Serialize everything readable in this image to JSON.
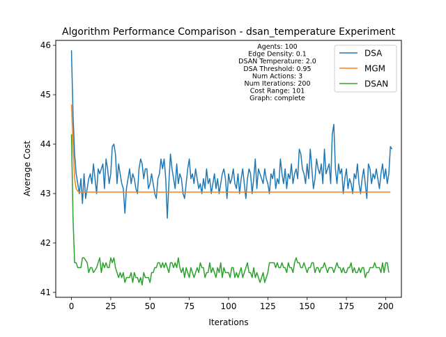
{
  "chart_data": {
    "type": "line",
    "title": "Algorithm Performance Comparison - dsan_temperature Experiment",
    "xlabel": "Iterations",
    "ylabel": "Average Cost",
    "xlim": [
      -10,
      210
    ],
    "ylim": [
      40.9,
      46.1
    ],
    "xticks": [
      0,
      25,
      50,
      75,
      100,
      125,
      150,
      175,
      200
    ],
    "yticks": [
      41,
      42,
      43,
      44,
      45,
      46
    ],
    "grid": false,
    "legend_position": "top-right",
    "annotation": [
      "Agents: 100",
      "Edge Density: 0.1",
      "DSAN Temperature: 2.0",
      "DSA Threshold: 0.95",
      "Num Actions: 3",
      "Num Iterations: 200",
      "Cost Range: 101",
      "Graph: complete"
    ],
    "series": [
      {
        "name": "DSA",
        "color": "#1f77b4",
        "y": [
          45.9,
          44.6,
          43.8,
          43.4,
          43.2,
          43.0,
          43.3,
          42.8,
          43.4,
          42.9,
          43.1,
          43.3,
          43.4,
          43.2,
          43.6,
          43.3,
          43.0,
          43.5,
          43.4,
          43.5,
          43.6,
          43.1,
          43.7,
          43.5,
          43.2,
          43.4,
          43.95,
          44.0,
          43.8,
          43.2,
          43.6,
          43.4,
          43.2,
          43.1,
          42.6,
          43.1,
          43.3,
          43.5,
          43.2,
          43.4,
          43.3,
          43.1,
          43.0,
          43.5,
          43.7,
          43.6,
          43.3,
          43.5,
          43.5,
          43.1,
          43.2,
          43.4,
          43.2,
          43.0,
          42.9,
          43.3,
          43.4,
          43.7,
          43.5,
          43.7,
          43.3,
          42.5,
          43.2,
          43.8,
          43.5,
          43.3,
          43.1,
          43.6,
          43.2,
          43.4,
          43.3,
          43.0,
          42.9,
          43.2,
          43.5,
          43.7,
          43.3,
          43.4,
          43.2,
          43.5,
          43.3,
          43.1,
          43.2,
          43.0,
          43.3,
          43.1,
          43.5,
          43.2,
          43.3,
          43.0,
          43.2,
          43.4,
          43.1,
          43.3,
          43.0,
          43.2,
          43.4,
          43.5,
          43.3,
          42.9,
          43.4,
          43.2,
          43.3,
          43.5,
          43.2,
          43.1,
          43.4,
          43.0,
          43.3,
          43.5,
          43.2,
          42.9,
          43.3,
          43.5,
          43.4,
          43.0,
          43.3,
          43.7,
          43.1,
          43.5,
          43.4,
          43.3,
          43.2,
          43.5,
          43.3,
          43.2,
          43.0,
          43.4,
          43.3,
          43.5,
          43.1,
          43.3,
          43.2,
          43.7,
          43.4,
          43.2,
          43.5,
          43.1,
          43.4,
          43.3,
          43.6,
          43.2,
          43.4,
          43.5,
          43.3,
          43.9,
          43.8,
          43.5,
          43.4,
          43.2,
          43.6,
          43.3,
          43.9,
          43.5,
          43.1,
          43.3,
          43.7,
          43.5,
          43.4,
          43.6,
          43.2,
          43.9,
          43.4,
          43.5,
          43.6,
          43.2,
          44.2,
          44.4,
          43.5,
          43.2,
          43.6,
          43.4,
          43.5,
          43.0,
          43.3,
          43.5,
          43.1,
          43.3,
          43.2,
          43.0,
          43.4,
          43.3,
          43.6,
          43.2,
          43.0,
          43.3,
          43.5,
          43.2,
          42.9,
          43.6,
          43.5,
          43.2,
          43.4,
          43.3,
          43.5,
          43.3,
          43.1,
          43.4,
          43.6,
          43.3,
          43.5,
          43.2,
          43.4,
          43.95,
          43.9
        ]
      },
      {
        "name": "MGM",
        "color": "#ff7f0e",
        "y": [
          44.8,
          44.0,
          43.3,
          43.1,
          43.05,
          43.03,
          43.03,
          43.03,
          43.03,
          43.03,
          43.03,
          43.03,
          43.03,
          43.03,
          43.03,
          43.03,
          43.03,
          43.03,
          43.03,
          43.03,
          43.03,
          43.03,
          43.03,
          43.03,
          43.03,
          43.03,
          43.03,
          43.03,
          43.03,
          43.03,
          43.03,
          43.03,
          43.03,
          43.03,
          43.03,
          43.03,
          43.03,
          43.03,
          43.03,
          43.03,
          43.03,
          43.03,
          43.03,
          43.03,
          43.03,
          43.03,
          43.03,
          43.03,
          43.03,
          43.03,
          43.03,
          43.03,
          43.03,
          43.03,
          43.03,
          43.03,
          43.03,
          43.03,
          43.03,
          43.03,
          43.03,
          43.03,
          43.03,
          43.03,
          43.03,
          43.03,
          43.03,
          43.03,
          43.03,
          43.03,
          43.03,
          43.03,
          43.03,
          43.03,
          43.03,
          43.03,
          43.03,
          43.03,
          43.03,
          43.03,
          43.03,
          43.03,
          43.03,
          43.03,
          43.03,
          43.03,
          43.03,
          43.03,
          43.03,
          43.03,
          43.03,
          43.03,
          43.03,
          43.03,
          43.03,
          43.03,
          43.03,
          43.03,
          43.03,
          43.03,
          43.03,
          43.03,
          43.03,
          43.03,
          43.03,
          43.03,
          43.03,
          43.03,
          43.03,
          43.03,
          43.03,
          43.03,
          43.03,
          43.03,
          43.03,
          43.03,
          43.03,
          43.03,
          43.03,
          43.03,
          43.03,
          43.03,
          43.03,
          43.03,
          43.03,
          43.03,
          43.03,
          43.03,
          43.03,
          43.03,
          43.03,
          43.03,
          43.03,
          43.03,
          43.03,
          43.03,
          43.03,
          43.03,
          43.03,
          43.03,
          43.03,
          43.03,
          43.03,
          43.03,
          43.03,
          43.03,
          43.03,
          43.03,
          43.03,
          43.03,
          43.03,
          43.03,
          43.03,
          43.03,
          43.03,
          43.03,
          43.03,
          43.03,
          43.03,
          43.03,
          43.03,
          43.03,
          43.03,
          43.03,
          43.03,
          43.03,
          43.03,
          43.03,
          43.03,
          43.03,
          43.03,
          43.03,
          43.03,
          43.03,
          43.03,
          43.03,
          43.03,
          43.03,
          43.03,
          43.03,
          43.03,
          43.03,
          43.03,
          43.03,
          43.03,
          43.03,
          43.03,
          43.03,
          43.03,
          43.03,
          43.03,
          43.03,
          43.03,
          43.03,
          43.03,
          43.03,
          43.03,
          43.03,
          43.03,
          43.03,
          43.03,
          43.03,
          43.03,
          43.03
        ]
      },
      {
        "name": "DSAN",
        "color": "#2ca02c",
        "y": [
          44.2,
          42.5,
          41.6,
          41.6,
          41.5,
          41.5,
          41.5,
          41.7,
          41.7,
          41.65,
          41.6,
          41.4,
          41.5,
          41.5,
          41.4,
          41.45,
          41.5,
          41.6,
          41.7,
          41.4,
          41.6,
          41.5,
          41.6,
          41.5,
          41.5,
          41.7,
          41.6,
          41.7,
          41.5,
          41.4,
          41.3,
          41.4,
          41.3,
          41.4,
          41.2,
          41.3,
          41.3,
          41.3,
          41.4,
          41.2,
          41.4,
          41.3,
          41.3,
          41.2,
          41.3,
          41.15,
          41.4,
          41.3,
          41.3,
          41.3,
          41.2,
          41.4,
          41.4,
          41.5,
          41.5,
          41.6,
          41.6,
          41.5,
          41.6,
          41.5,
          41.6,
          41.5,
          41.4,
          41.6,
          41.6,
          41.5,
          41.6,
          41.5,
          41.7,
          41.5,
          41.4,
          41.5,
          41.3,
          41.5,
          41.4,
          41.3,
          41.5,
          41.4,
          41.3,
          41.4,
          41.5,
          41.4,
          41.6,
          41.5,
          41.5,
          41.3,
          41.4,
          41.4,
          41.6,
          41.4,
          41.5,
          41.4,
          41.3,
          41.5,
          41.4,
          41.6,
          41.3,
          41.5,
          41.4,
          41.4,
          41.4,
          41.3,
          41.5,
          41.5,
          41.3,
          41.4,
          41.3,
          41.4,
          41.5,
          41.3,
          41.4,
          41.5,
          41.6,
          41.4,
          41.4,
          41.3,
          41.5,
          41.3,
          41.4,
          41.3,
          41.2,
          41.3,
          41.4,
          41.2,
          41.3,
          41.4,
          41.6,
          41.6,
          41.6,
          41.6,
          41.5,
          41.6,
          41.5,
          41.5,
          41.6,
          41.5,
          41.5,
          41.4,
          41.6,
          41.5,
          41.5,
          41.4,
          41.6,
          41.7,
          41.6,
          41.6,
          41.5,
          41.5,
          41.6,
          41.5,
          41.4,
          41.5,
          41.5,
          41.6,
          41.6,
          41.4,
          41.5,
          41.5,
          41.4,
          41.5,
          41.5,
          41.6,
          41.5,
          41.4,
          41.5,
          41.5,
          41.5,
          41.4,
          41.5,
          41.6,
          41.5,
          41.5,
          41.4,
          41.5,
          41.4,
          41.4,
          41.5,
          41.5,
          41.6,
          41.4,
          41.5,
          41.4,
          41.4,
          41.5,
          41.4,
          41.5,
          41.5,
          41.3,
          41.4,
          41.4,
          41.5,
          41.5,
          41.5,
          41.6,
          41.5,
          41.5,
          41.5,
          41.4,
          41.6,
          41.4,
          41.6,
          41.6,
          41.4
        ]
      }
    ]
  }
}
